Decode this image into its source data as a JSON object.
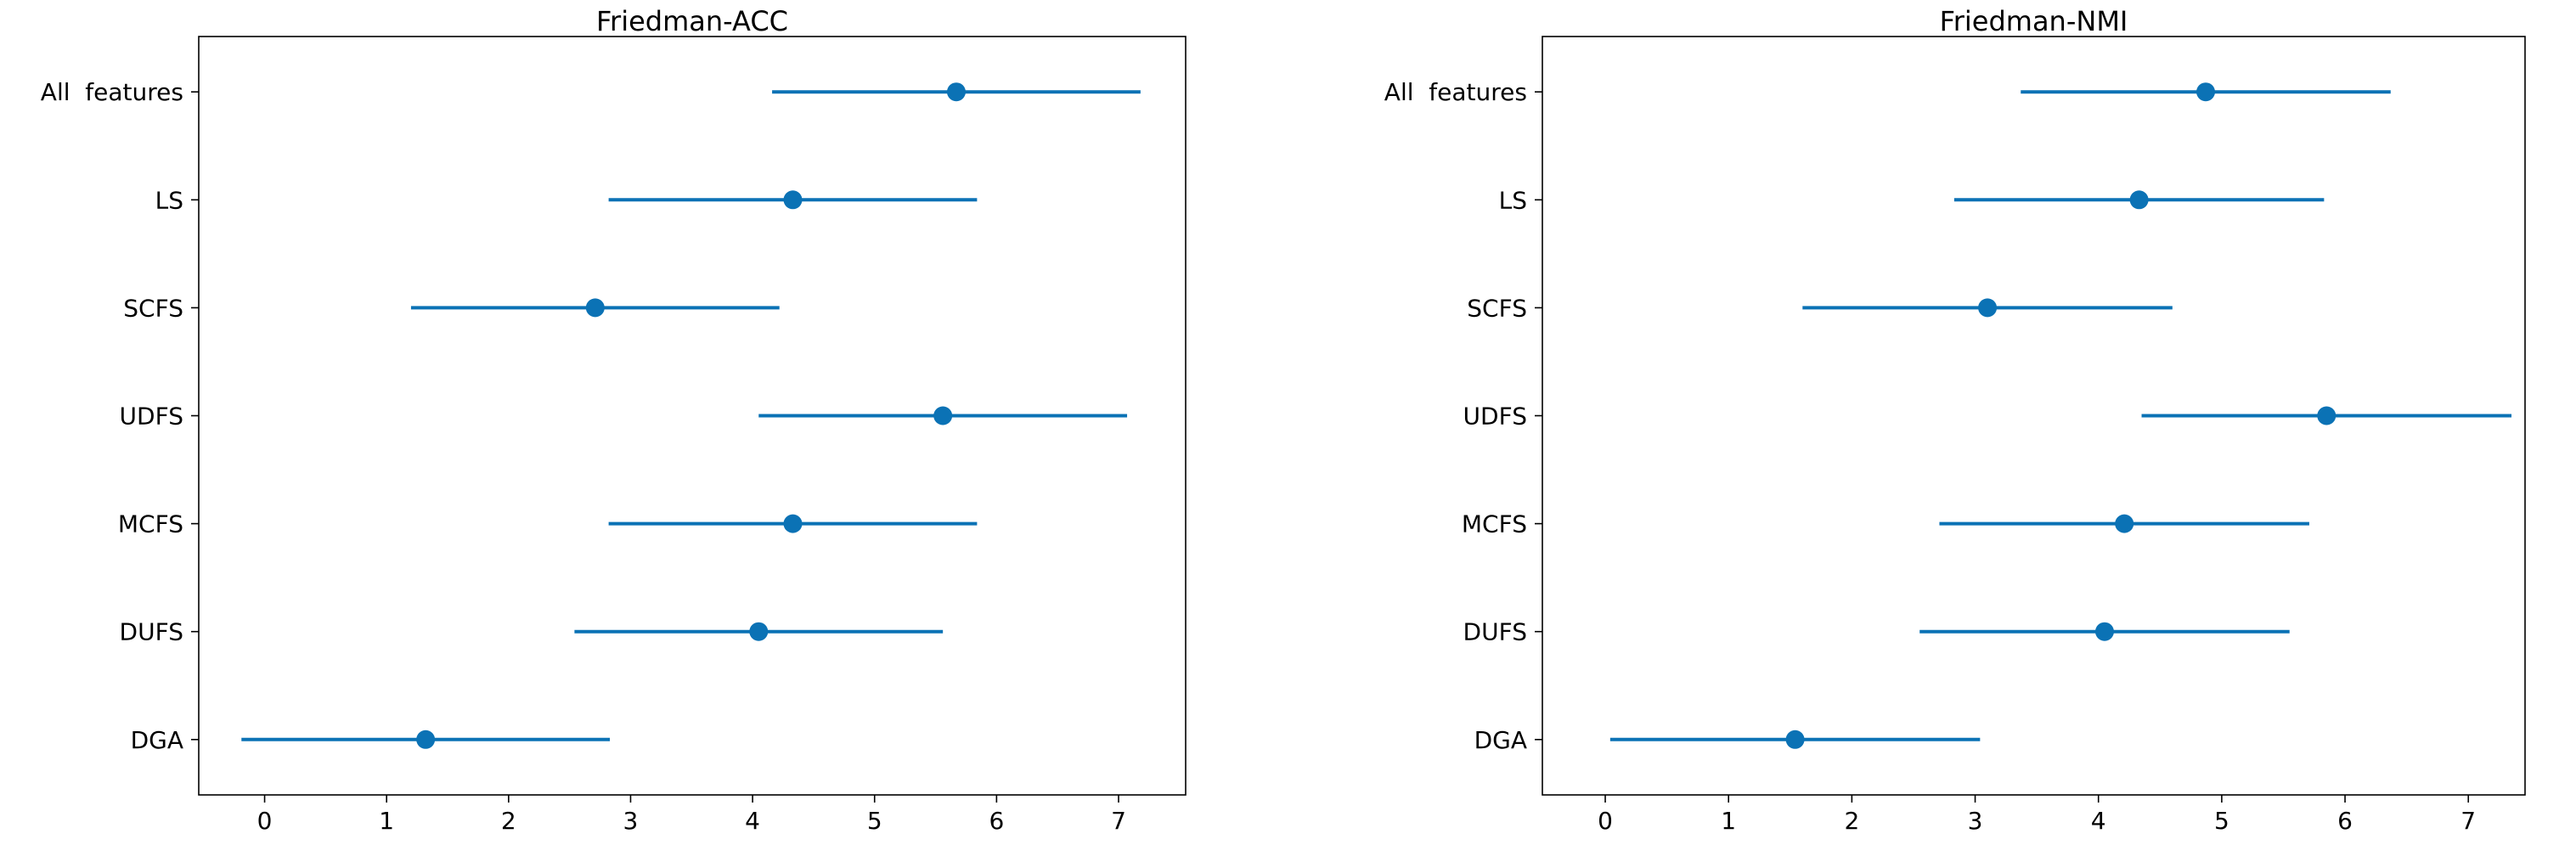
{
  "chart_data": [
    {
      "type": "errorbar",
      "title": "Friedman-ACC",
      "categories": [
        "All  features",
        "LS",
        "SCFS",
        "UDFS",
        "MCFS",
        "DUFS",
        "DGA"
      ],
      "values": [
        5.67,
        4.33,
        2.71,
        5.56,
        4.33,
        4.05,
        1.32
      ],
      "errors": [
        1.51,
        1.51,
        1.51,
        1.51,
        1.51,
        1.51,
        1.51
      ],
      "color": "#0b72b5",
      "xlim": [
        -0.54,
        7.55
      ],
      "xticks": [
        0,
        1,
        2,
        3,
        4,
        5,
        6,
        7
      ]
    },
    {
      "type": "errorbar",
      "title": "Friedman-NMI",
      "categories": [
        "All  features",
        "LS",
        "SCFS",
        "UDFS",
        "MCFS",
        "DUFS",
        "DGA"
      ],
      "values": [
        4.87,
        4.33,
        3.1,
        5.85,
        4.21,
        4.05,
        1.54
      ],
      "errors": [
        1.5,
        1.5,
        1.5,
        1.5,
        1.5,
        1.5,
        1.5
      ],
      "color": "#0b72b5",
      "xlim": [
        -0.51,
        7.46
      ],
      "xticks": [
        0,
        1,
        2,
        3,
        4,
        5,
        6,
        7
      ]
    }
  ]
}
